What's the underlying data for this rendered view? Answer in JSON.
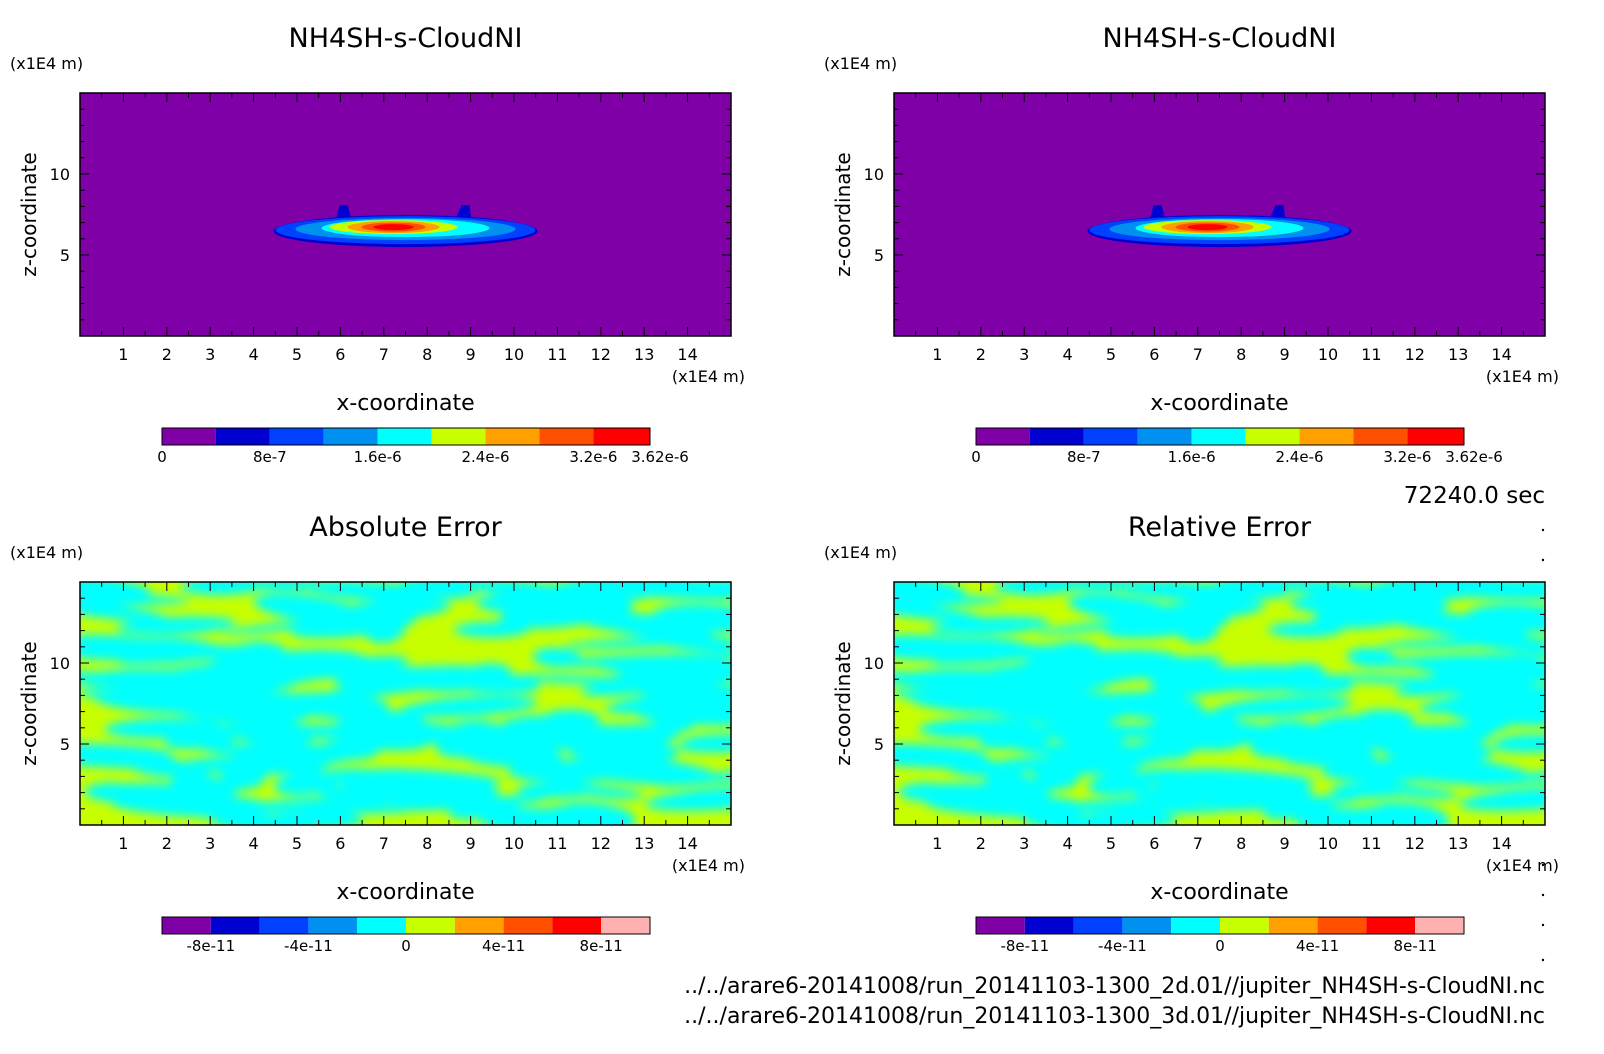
{
  "time_label": "72240.0 sec",
  "file_paths": [
    "../../arare6-20141008/run_20141103-1300_2d.01//jupiter_NH4SH-s-CloudNI.nc",
    "../../arare6-20141008/run_20141103-1300_3d.01//jupiter_NH4SH-s-CloudNI.nc"
  ],
  "colors": {
    "background": "#8000a8",
    "levels_main": [
      "#8000a8",
      "#0000d0",
      "#0040ff",
      "#0090f0",
      "#00ffff",
      "#c8ff00",
      "#ffa000",
      "#ff5000",
      "#ff0000"
    ],
    "levels_error": [
      "#8000a8",
      "#0000d0",
      "#0040ff",
      "#0090f0",
      "#00ffff",
      "#c8ff00",
      "#ffa000",
      "#ff5000",
      "#ff0000",
      "#ffb0b0"
    ],
    "error_high": "#c8ff00",
    "error_low": "#00ffff"
  },
  "chart_data": [
    {
      "type": "heatmap",
      "title": "NH4SH-s-CloudNI",
      "xlabel": "x-coordinate",
      "ylabel": "z-coordinate",
      "x_unit": "(x1E4 m)",
      "y_unit": "(x1E4 m)",
      "xlim": [
        0,
        15
      ],
      "ylim": [
        0,
        15
      ],
      "x_ticks": [
        1,
        2,
        3,
        4,
        5,
        6,
        7,
        8,
        9,
        10,
        11,
        12,
        13,
        14
      ],
      "y_ticks": [
        5,
        10
      ],
      "colorbar": {
        "ticks": [
          "0",
          "8e-7",
          "1.6e-6",
          "2.4e-6",
          "3.2e-6",
          "3.62e-6"
        ],
        "tick_values": [
          0,
          8e-07,
          1.6e-06,
          2.4e-06,
          3.2e-06,
          3.62e-06
        ],
        "range": [
          0,
          3.62e-06
        ]
      }
    },
    {
      "type": "heatmap",
      "title": "NH4SH-s-CloudNI",
      "xlabel": "x-coordinate",
      "ylabel": "z-coordinate",
      "x_unit": "(x1E4 m)",
      "y_unit": "(x1E4 m)",
      "xlim": [
        0,
        15
      ],
      "ylim": [
        0,
        15
      ],
      "x_ticks": [
        1,
        2,
        3,
        4,
        5,
        6,
        7,
        8,
        9,
        10,
        11,
        12,
        13,
        14
      ],
      "y_ticks": [
        5,
        10
      ],
      "colorbar": {
        "ticks": [
          "0",
          "8e-7",
          "1.6e-6",
          "2.4e-6",
          "3.2e-6",
          "3.62e-6"
        ],
        "tick_values": [
          0,
          8e-07,
          1.6e-06,
          2.4e-06,
          3.2e-06,
          3.62e-06
        ],
        "range": [
          0,
          3.62e-06
        ]
      }
    },
    {
      "type": "heatmap",
      "title": "Absolute Error",
      "xlabel": "x-coordinate",
      "ylabel": "z-coordinate",
      "x_unit": "(x1E4 m)",
      "y_unit": "(x1E4 m)",
      "xlim": [
        0,
        15
      ],
      "ylim": [
        0,
        15
      ],
      "x_ticks": [
        1,
        2,
        3,
        4,
        5,
        6,
        7,
        8,
        9,
        10,
        11,
        12,
        13,
        14
      ],
      "y_ticks": [
        5,
        10
      ],
      "colorbar": {
        "ticks": [
          "-8e-11",
          "-4e-11",
          "0",
          "4e-11",
          "8e-11"
        ],
        "tick_values": [
          -8e-11,
          -4e-11,
          0,
          4e-11,
          8e-11
        ],
        "range": [
          -1e-10,
          1e-10
        ]
      }
    },
    {
      "type": "heatmap",
      "title": "Relative Error",
      "xlabel": "x-coordinate",
      "ylabel": "z-coordinate",
      "x_unit": "(x1E4 m)",
      "y_unit": "(x1E4 m)",
      "xlim": [
        0,
        15
      ],
      "ylim": [
        0,
        15
      ],
      "x_ticks": [
        1,
        2,
        3,
        4,
        5,
        6,
        7,
        8,
        9,
        10,
        11,
        12,
        13,
        14
      ],
      "y_ticks": [
        5,
        10
      ],
      "colorbar": {
        "ticks": [
          "-8e-11",
          "-4e-11",
          "0",
          "4e-11",
          "8e-11"
        ],
        "tick_values": [
          -8e-11,
          -4e-11,
          0,
          4e-11,
          8e-11
        ],
        "range": [
          -1e-10,
          1e-10
        ]
      }
    }
  ]
}
